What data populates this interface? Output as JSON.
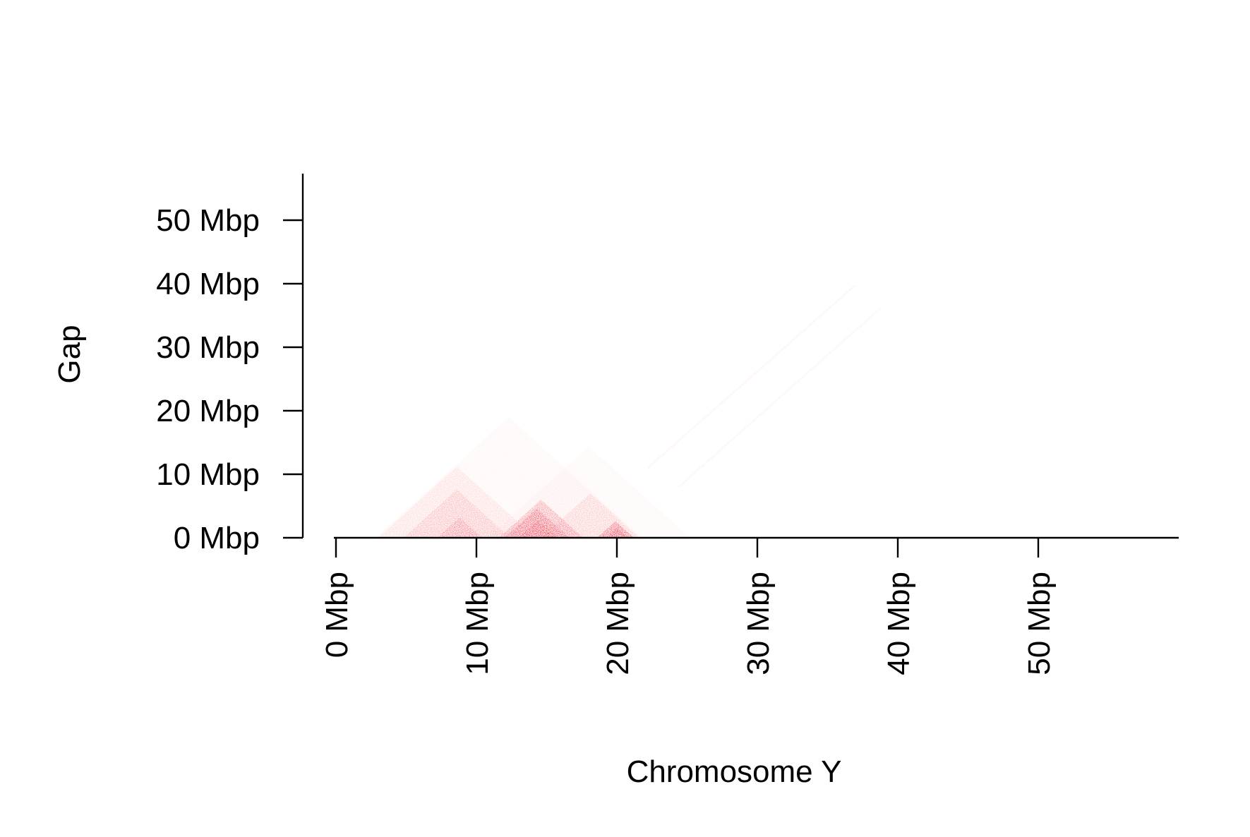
{
  "chart_data": {
    "type": "heatmap",
    "subtype": "triangular-contact-map",
    "title": "",
    "xlabel": "Chromosome Y",
    "ylabel": "Gap",
    "x_unit": "Mbp",
    "y_unit": "Mbp",
    "xlim": [
      0,
      59.6
    ],
    "ylim": [
      0,
      57.3
    ],
    "x_ticks": [
      {
        "value": 0,
        "label": "0 Mbp"
      },
      {
        "value": 10,
        "label": "10 Mbp"
      },
      {
        "value": 20,
        "label": "20 Mbp"
      },
      {
        "value": 30,
        "label": "30 Mbp"
      },
      {
        "value": 40,
        "label": "40 Mbp"
      },
      {
        "value": 50,
        "label": "50 Mbp"
      }
    ],
    "y_ticks": [
      {
        "value": 0,
        "label": "0 Mbp"
      },
      {
        "value": 10,
        "label": "10 Mbp"
      },
      {
        "value": 20,
        "label": "20 Mbp"
      },
      {
        "value": 30,
        "label": "30 Mbp"
      },
      {
        "value": 40,
        "label": "40 Mbp"
      },
      {
        "value": 50,
        "label": "50 Mbp"
      }
    ],
    "grid": false,
    "legend": "none",
    "color_scale": {
      "low": "#ffffff",
      "high": "#e8001c"
    },
    "note_regions_in_data_units": "interaction regions: triangles with base [start,end] on the x axis and apex at gap = end - start",
    "regions": [
      {
        "start": 2.8,
        "end": 21.8,
        "intensity": 0.06
      },
      {
        "start": 3.0,
        "end": 14.2,
        "intensity": 0.14
      },
      {
        "start": 4.8,
        "end": 12.4,
        "intensity": 0.22
      },
      {
        "start": 7.2,
        "end": 10.4,
        "intensity": 0.35
      },
      {
        "start": 11.6,
        "end": 17.6,
        "intensity": 0.42
      },
      {
        "start": 12.0,
        "end": 16.6,
        "intensity": 0.6
      },
      {
        "start": 13.0,
        "end": 15.8,
        "intensity": 0.75
      },
      {
        "start": 14.6,
        "end": 21.6,
        "intensity": 0.2
      },
      {
        "start": 18.6,
        "end": 21.2,
        "intensity": 0.65
      },
      {
        "start": 19.2,
        "end": 20.8,
        "intensity": 0.85
      },
      {
        "start": 10.8,
        "end": 25.2,
        "intensity": 0.05
      }
    ],
    "streaks": [
      {
        "from": [
          22.2,
          11.0
        ],
        "to": [
          37.0,
          39.8
        ],
        "intensity": 0.08
      },
      {
        "from": [
          24.4,
          8.0
        ],
        "to": [
          38.8,
          36.2
        ],
        "intensity": 0.07
      }
    ]
  }
}
